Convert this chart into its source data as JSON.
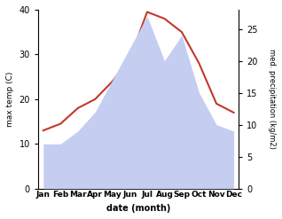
{
  "months": [
    "Jan",
    "Feb",
    "Mar",
    "Apr",
    "May",
    "Jun",
    "Jul",
    "Aug",
    "Sep",
    "Oct",
    "Nov",
    "Dec"
  ],
  "month_positions": [
    0,
    1,
    2,
    3,
    4,
    5,
    6,
    7,
    8,
    9,
    10,
    11
  ],
  "max_temp": [
    13,
    14.5,
    18,
    20,
    24,
    29,
    39.5,
    38,
    35,
    28,
    19,
    17
  ],
  "precipitation": [
    7,
    7,
    9,
    12,
    17,
    22,
    27,
    20,
    24,
    15,
    10,
    9
  ],
  "temp_color": "#c0392b",
  "precip_fill_color": "#c5cef0",
  "temp_ylim": [
    0,
    40
  ],
  "precip_ylim": [
    0,
    28
  ],
  "right_yticks": [
    0,
    5,
    10,
    15,
    20,
    25
  ],
  "left_yticks": [
    0,
    10,
    20,
    30,
    40
  ],
  "xlabel": "date (month)",
  "ylabel_left": "max temp (C)",
  "ylabel_right": "med. precipitation (kg/m2)",
  "background_color": "#ffffff"
}
